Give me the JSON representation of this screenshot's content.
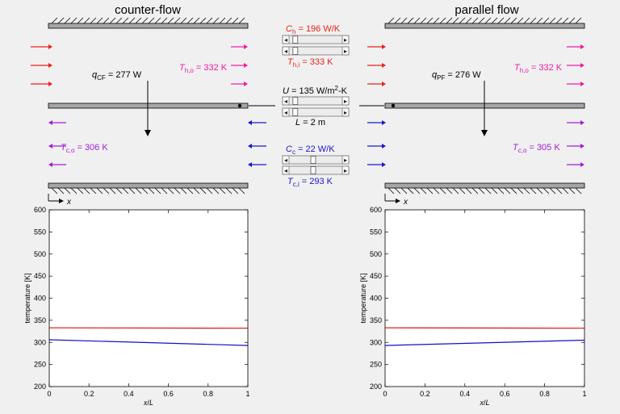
{
  "titles": {
    "left": "counter-flow",
    "right": "parallel flow"
  },
  "colors": {
    "hot": "#e8221c",
    "hot_out": "#ee1aa8",
    "cold": "#1818c8",
    "cold_out": "#a020d8",
    "wall": "#a6a6a6",
    "plot_hot": "#e01010",
    "plot_cold": "#1010c8"
  },
  "center": {
    "Ch_sym": "C",
    "Ch_sub": "h",
    "Ch_val": " = 196 W/K",
    "Thi_sym": "T",
    "Thi_sub": "h,i",
    "Thi_val": " = 333 K",
    "U_sym": "U",
    "U_val": " = 135 W/m",
    "U_sup": "2",
    "U_unit": "-K",
    "L_sym": "L",
    "L_val": " = 2 m",
    "Cc_sym": "C",
    "Cc_sub": "c",
    "Cc_val": " = 22 W/K",
    "Tci_sym": "T",
    "Tci_sub": "c,i",
    "Tci_val": " = 293 K",
    "slider_left_arrow": "◂",
    "slider_right_arrow": "▸",
    "sliders": [
      {
        "name": "Ch",
        "value_fraction": 0.08
      },
      {
        "name": "Thi",
        "value_fraction": 0.08
      },
      {
        "name": "U",
        "value_fraction": 0.08
      },
      {
        "name": "L",
        "value_fraction": 0.08
      },
      {
        "name": "Cc",
        "value_fraction": 0.45
      },
      {
        "name": "Tci",
        "value_fraction": 0.45
      }
    ]
  },
  "cf": {
    "q_sym": "q",
    "q_sub": "CF",
    "q_val": " = 277 W",
    "Tho_sym": "T",
    "Tho_sub": "h,o",
    "Tho_val": " = 332 K",
    "Tco_sym": "T",
    "Tco_sub": "c,o",
    "Tco_val": " = 306 K",
    "x_label": "x"
  },
  "pf": {
    "q_sym": "q",
    "q_sub": "PF",
    "q_val": " = 276 W",
    "Tho_sym": "T",
    "Tho_sub": "h,o",
    "Tho_val": " = 332 K",
    "Tco_sym": "T",
    "Tco_sub": "c,o",
    "Tco_val": " = 305 K",
    "x_label": "x"
  },
  "chart_data": [
    {
      "type": "line",
      "title": "",
      "xlabel_sym": "x",
      "xlabel_rest": "/",
      "xlabel_sym2": "L",
      "ylabel": "temperature [K]",
      "xlim": [
        0,
        1
      ],
      "ylim": [
        200,
        600
      ],
      "xticks": [
        "0",
        "0.2",
        "0.4",
        "0.6",
        "0.8",
        "1"
      ],
      "yticks": [
        "200",
        "250",
        "300",
        "350",
        "400",
        "450",
        "500",
        "550",
        "600"
      ],
      "series": [
        {
          "color": "#e01010",
          "x": [
            0,
            1
          ],
          "y": [
            333,
            332
          ]
        },
        {
          "color": "#1010c8",
          "x": [
            0,
            1
          ],
          "y": [
            306,
            293
          ]
        }
      ]
    },
    {
      "type": "line",
      "title": "",
      "xlabel_sym": "x",
      "xlabel_rest": "/",
      "xlabel_sym2": "L",
      "ylabel": "temperature [K]",
      "xlim": [
        0,
        1
      ],
      "ylim": [
        200,
        600
      ],
      "xticks": [
        "0",
        "0.2",
        "0.4",
        "0.6",
        "0.8",
        "1"
      ],
      "yticks": [
        "200",
        "250",
        "300",
        "350",
        "400",
        "450",
        "500",
        "550",
        "600"
      ],
      "series": [
        {
          "color": "#e01010",
          "x": [
            0,
            1
          ],
          "y": [
            333,
            332
          ]
        },
        {
          "color": "#1010c8",
          "x": [
            0,
            1
          ],
          "y": [
            293,
            305
          ]
        }
      ]
    }
  ]
}
